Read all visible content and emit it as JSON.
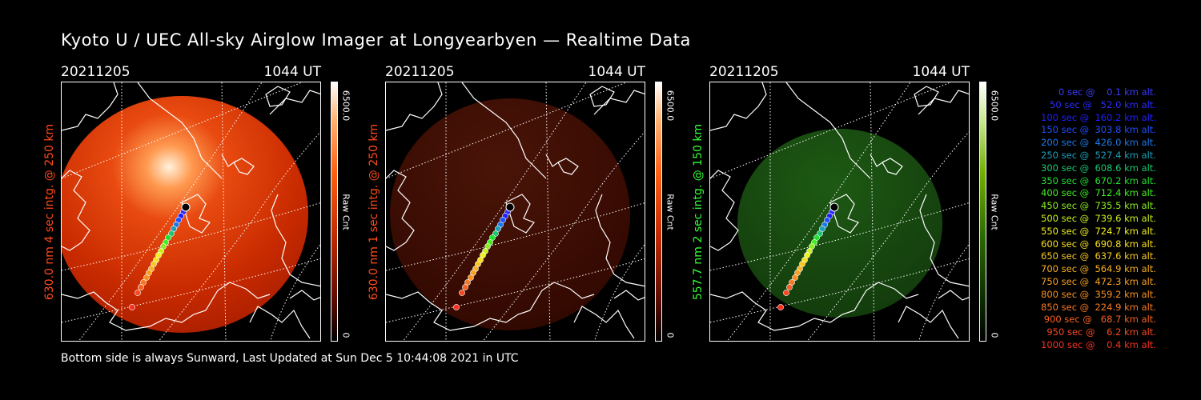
{
  "title": "Kyoto U / UEC All-sky Airglow Imager at Longyearbyen — Realtime Data",
  "footer": "Bottom side is always Sunward, Last Updated at Sun Dec  5 10:44:08 2021 in UTC",
  "panels": [
    {
      "date": "20211205",
      "time": "1044 UT",
      "ylabel": "630.0 nm 4 sec intg. @ 250 km",
      "label_color": "#ff4a1a",
      "cbar_max": "6500.0",
      "cbar_label": "Raw Cnt",
      "cbar_min": "0",
      "channel": "red-bright"
    },
    {
      "date": "20211205",
      "time": "1044 UT",
      "ylabel": "630.0 nm 1 sec intg. @ 250 km",
      "label_color": "#ff4a1a",
      "cbar_max": "6500.0",
      "cbar_label": "Raw Cnt",
      "cbar_min": "0",
      "channel": "red-dim"
    },
    {
      "date": "20211205",
      "time": "1044 UT",
      "ylabel": "557.7 nm 2 sec intg. @ 150 km",
      "label_color": "#33ff33",
      "cbar_max": "6500.0",
      "cbar_label": "Raw Cnt",
      "cbar_min": "0",
      "channel": "green"
    }
  ],
  "legend": [
    {
      "text": "0 sec @    0.1 km alt.",
      "color": "#3a3aff"
    },
    {
      "text": "50 sec @   52.0 km alt.",
      "color": "#2a2aff"
    },
    {
      "text": "100 sec @  160.2 km alt.",
      "color": "#2020ff"
    },
    {
      "text": "150 sec @  303.8 km alt.",
      "color": "#2050ff"
    },
    {
      "text": "200 sec @  426.0 km alt.",
      "color": "#1c78e8"
    },
    {
      "text": "250 sec @  527.4 km alt.",
      "color": "#1aa0b8"
    },
    {
      "text": "300 sec @  608.6 km alt.",
      "color": "#18c870"
    },
    {
      "text": "350 sec @  670.2 km alt.",
      "color": "#20e030"
    },
    {
      "text": "400 sec @  712.4 km alt.",
      "color": "#40f020"
    },
    {
      "text": "450 sec @  735.5 km alt.",
      "color": "#88f020"
    },
    {
      "text": "500 sec @  739.6 km alt.",
      "color": "#c8f020"
    },
    {
      "text": "550 sec @  724.7 km alt.",
      "color": "#f0f020"
    },
    {
      "text": "600 sec @  690.8 km alt.",
      "color": "#f8e020"
    },
    {
      "text": "650 sec @  637.6 km alt.",
      "color": "#f8c820"
    },
    {
      "text": "700 sec @  564.9 km alt.",
      "color": "#f8b020"
    },
    {
      "text": "750 sec @  472.3 km alt.",
      "color": "#f8a020"
    },
    {
      "text": "800 sec @  359.2 km alt.",
      "color": "#f89020"
    },
    {
      "text": "850 sec @  224.9 km alt.",
      "color": "#f87820"
    },
    {
      "text": "900 sec @   68.7 km alt.",
      "color": "#f86020"
    },
    {
      "text": "950 sec @    6.2 km alt.",
      "color": "#f84820"
    },
    {
      "text": "1000 sec @    0.4 km alt.",
      "color": "#f83020"
    }
  ]
}
